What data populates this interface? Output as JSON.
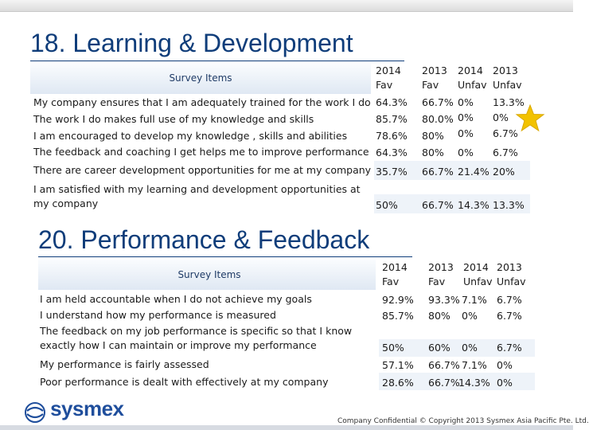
{
  "section1": {
    "title": "18. Learning & Development",
    "headers": {
      "items": "Survey Items",
      "c1": [
        "2014",
        "Fav"
      ],
      "c2": [
        "2013",
        "Fav"
      ],
      "c3": [
        "2014",
        "Unfav"
      ],
      "c4": [
        "2013",
        "Unfav"
      ]
    },
    "rows": [
      {
        "item": "My company ensures that I am adequately trained for the work I do",
        "v": [
          "64.3%",
          "66.7%",
          "0%",
          "13.3%"
        ]
      },
      {
        "item": "The work I do makes full use of my knowledge and skills",
        "v": [
          "85.7%",
          "80.0%",
          "0%",
          "0%"
        ]
      },
      {
        "item": "I am encouraged to develop my knowledge , skills and abilities",
        "v": [
          "78.6%",
          "80%",
          "0%",
          "6.7%"
        ]
      },
      {
        "item": "The feedback and coaching I get helps me to improve performance",
        "v": [
          "64.3%",
          "80%",
          "0%",
          "6.7%"
        ]
      },
      {
        "item": "There are career development opportunities for me at my company",
        "v": [
          "35.7%",
          "66.7%",
          "21.4%",
          "20%"
        ]
      },
      {
        "item": "I am satisfied with my learning and development opportunities at my company",
        "v": [
          "50%",
          "66.7%",
          "14.3%",
          "13.3%"
        ]
      }
    ]
  },
  "section2": {
    "title": "20. Performance & Feedback",
    "headers": {
      "items": "Survey Items",
      "c1": [
        "2014",
        "Fav"
      ],
      "c2": [
        "2013",
        "Fav"
      ],
      "c3": [
        "2014",
        "Unfav"
      ],
      "c4": [
        "2013",
        "Unfav"
      ]
    },
    "rows": [
      {
        "item": "I am held accountable when I do not achieve my goals",
        "v": [
          "92.9%",
          "93.3%",
          "7.1%",
          "6.7%"
        ]
      },
      {
        "item": "I understand how my performance is measured",
        "v": [
          "85.7%",
          "80%",
          "0%",
          "6.7%"
        ]
      },
      {
        "item": "The feedback on my job performance is specific so that I know exactly how I can maintain or improve my performance",
        "v": [
          "50%",
          "60%",
          "0%",
          "6.7%"
        ]
      },
      {
        "item": "My performance is fairly assessed",
        "v": [
          "57.1%",
          "66.7%",
          "7.1%",
          "0%"
        ]
      },
      {
        "item": "Poor performance is dealt with effectively at my company",
        "v": [
          "28.6%",
          "66.7%",
          "14.3%",
          "0%"
        ]
      }
    ]
  },
  "logo": {
    "text": "sysmex"
  },
  "footer": {
    "text": "Company Confidential © Copyright 2013 Sysmex Asia Pacific Pte. Ltd."
  },
  "colors": {
    "title": "#0f3d7a",
    "header_bg": "#dfe8f3",
    "row_alt": "#eef3f9",
    "star": "#f2c200",
    "logo": "#1f4e9c"
  },
  "icons": {
    "star": "star-icon",
    "logo_mark": "sysmex-logo-icon"
  }
}
